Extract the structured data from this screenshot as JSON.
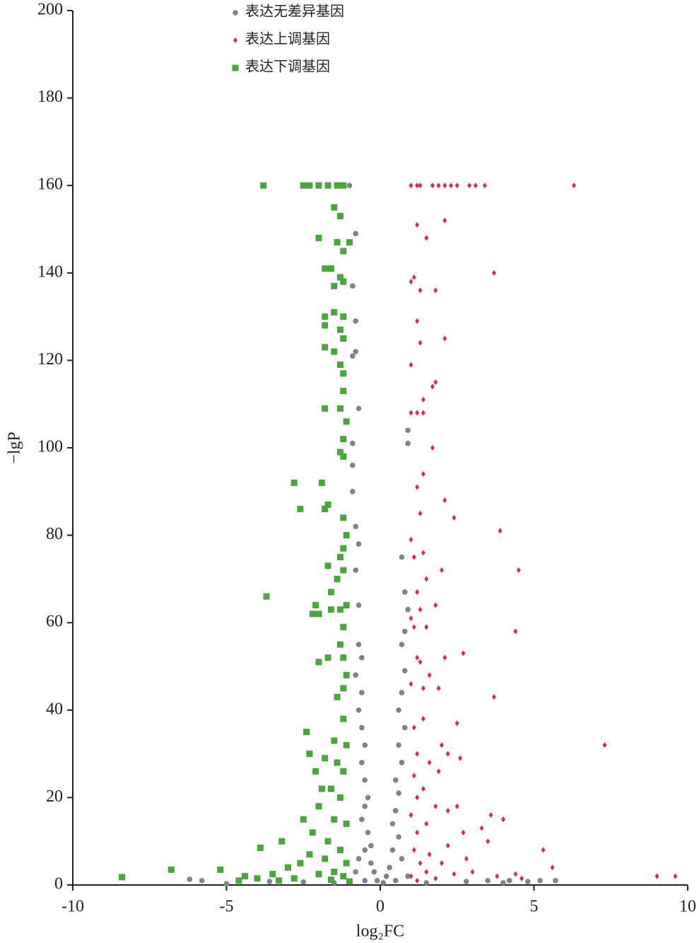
{
  "chart_data": {
    "type": "scatter",
    "x_label": "log₂FC",
    "y_label": "−lgP",
    "xlim": [
      -10,
      10
    ],
    "ylim": [
      0,
      200
    ],
    "xticks": [
      -10,
      -5,
      0,
      5,
      10
    ],
    "yticks": [
      0,
      20,
      40,
      60,
      80,
      100,
      120,
      140,
      160,
      180,
      200
    ],
    "grid": false,
    "legend": "top",
    "series": [
      {
        "name": "表达无差异基因",
        "color": "#7b8390",
        "marker": "circle",
        "x": [
          -1.0,
          -0.8,
          -0.9,
          -0.8,
          -0.9,
          -0.8,
          -0.7,
          -0.9,
          -0.9,
          -0.9,
          -0.8,
          -0.7,
          -0.8,
          -0.7,
          -0.7,
          -0.6,
          -0.8,
          -0.6,
          -0.7,
          -0.6,
          -0.5,
          -0.6,
          -0.5,
          -0.4,
          -0.5,
          -0.6,
          -0.4,
          -0.3,
          -0.5,
          -0.7,
          -0.3,
          -0.2,
          -0.8,
          -0.1,
          -0.5,
          0.9,
          0.9,
          0.7,
          0.8,
          0.9,
          0.8,
          0.7,
          0.8,
          0.7,
          0.6,
          0.8,
          0.6,
          0.7,
          0.5,
          0.6,
          0.5,
          0.4,
          0.6,
          0.4,
          0.7,
          0.3,
          0.2,
          0.9,
          0.1,
          0.5,
          -6.2,
          -5.8,
          -5.0,
          -3.6,
          -2.5,
          -1.5,
          1.5,
          2.8,
          3.5,
          4.2,
          4.8,
          5.2,
          5.7,
          4.0
        ],
        "values": [
          160,
          149,
          137,
          129,
          121,
          122,
          109,
          101,
          96,
          90,
          82,
          78,
          72,
          64,
          55,
          52,
          48,
          44,
          40,
          36,
          32,
          28,
          24,
          20,
          18,
          15,
          12,
          9,
          8,
          6,
          5,
          3,
          3,
          1,
          1,
          104,
          101,
          75,
          67,
          63,
          58,
          55,
          49,
          44,
          40,
          36,
          32,
          28,
          24,
          21,
          17,
          14,
          11,
          8,
          6,
          4,
          2,
          2,
          0.5,
          1,
          1.3,
          1,
          0.3,
          0.8,
          0.7,
          0.5,
          0.5,
          0.8,
          1,
          1,
          0.8,
          1,
          1,
          0.5
        ]
      },
      {
        "name": "表达上调基因",
        "color": "#e0284a",
        "marker": "diamond",
        "x": [
          1.0,
          1.2,
          1.3,
          1.7,
          1.9,
          2.1,
          2.3,
          2.5,
          2.9,
          3.1,
          3.4,
          6.3,
          2.1,
          1.2,
          1.5,
          3.7,
          1.1,
          1.0,
          1.8,
          1.3,
          1.2,
          1.3,
          2.1,
          1.0,
          1.8,
          1.7,
          1.4,
          1.2,
          1.0,
          1.4,
          1.7,
          1.4,
          1.2,
          2.1,
          2.4,
          1.3,
          3.9,
          1.0,
          1.4,
          1.1,
          4.5,
          2.0,
          1.5,
          1.2,
          1.8,
          1.3,
          1.0,
          1.1,
          1.5,
          4.4,
          2.7,
          1.2,
          2.1,
          1.3,
          1.6,
          1.9,
          1.4,
          1.0,
          3.7,
          1.4,
          1.1,
          2.5,
          2.0,
          7.3,
          1.2,
          2.2,
          1.6,
          2.6,
          1.1,
          1.9,
          1.4,
          1.2,
          2.5,
          1.8,
          1.0,
          2.2,
          3.6,
          1.5,
          4.0,
          3.3,
          2.7,
          1.2,
          3.5,
          2.2,
          1.1,
          1.6,
          2.8,
          1.3,
          5.3,
          5.6,
          2.0,
          1.5,
          1.0,
          3.0,
          2.4,
          3.8,
          4.4,
          9.0,
          9.6,
          1.8,
          1.2,
          4.6
        ],
        "values": [
          160,
          160,
          160,
          160,
          160,
          160,
          160,
          160,
          160,
          160,
          160,
          160,
          152,
          151,
          148,
          140,
          139,
          138,
          136,
          136,
          129,
          124,
          125,
          119,
          115,
          114,
          111,
          108,
          108,
          108,
          100,
          94,
          91,
          88,
          84,
          85,
          81,
          79,
          76,
          75,
          72,
          72,
          70,
          67,
          64,
          63,
          61,
          59,
          59,
          58,
          53,
          52,
          52,
          51,
          48,
          45,
          45,
          46,
          43,
          38,
          36,
          37,
          32,
          32,
          30,
          30,
          28,
          29,
          25,
          26,
          22,
          20,
          18,
          18,
          16,
          17,
          16,
          14,
          15,
          13,
          12,
          12,
          10,
          9,
          8,
          7,
          6,
          5,
          8,
          4,
          5,
          3,
          2,
          3,
          2.5,
          2,
          2.5,
          2,
          2,
          1.5,
          1,
          1.5
        ]
      },
      {
        "name": "表达下调基因",
        "color": "#4aa63c",
        "marker": "square",
        "x": [
          -3.8,
          -2.5,
          -2.3,
          -2.0,
          -1.7,
          -1.4,
          -1.2,
          -1.5,
          -1.3,
          -2.0,
          -1.0,
          -1.4,
          -1.2,
          -1.8,
          -1.6,
          -1.3,
          -1.2,
          -1.5,
          -1.8,
          -1.5,
          -1.2,
          -1.8,
          -1.3,
          -1.2,
          -1.8,
          -1.5,
          -1.3,
          -1.2,
          -1.2,
          -1.8,
          -1.3,
          -1.1,
          -1.2,
          -1.3,
          -1.2,
          -2.8,
          -1.9,
          -1.7,
          -1.8,
          -2.6,
          -1.2,
          -1.1,
          -1.2,
          -1.3,
          -1.7,
          -1.2,
          -1.4,
          -1.6,
          -3.7,
          -1.6,
          -2.1,
          -2.2,
          -2.0,
          -1.3,
          -1.1,
          -1.2,
          -1.3,
          -1.2,
          -2.0,
          -1.7,
          -1.1,
          -1.2,
          -1.4,
          -1.2,
          -2.4,
          -1.5,
          -1.1,
          -2.3,
          -1.8,
          -1.4,
          -1.2,
          -2.1,
          -1.6,
          -1.9,
          -1.3,
          -2.0,
          -2.5,
          -1.5,
          -1.1,
          -2.2,
          -1.7,
          -3.2,
          -3.9,
          -1.3,
          -2.3,
          -1.8,
          -1.1,
          -2.6,
          -3.0,
          -1.5,
          -4.4,
          -4.0,
          -3.5,
          -2.0,
          -1.2,
          -5.2,
          -6.8,
          -8.4,
          -2.8,
          -1.6,
          -4.6,
          -3.3,
          -1.0
        ],
        "values": [
          160,
          160,
          160,
          160,
          160,
          160,
          160,
          155,
          153,
          148,
          147,
          147,
          145,
          141,
          141,
          139,
          138,
          137,
          130,
          131,
          130,
          128,
          127,
          125,
          123,
          122,
          119,
          117,
          113,
          109,
          109,
          106,
          102,
          99,
          98,
          92,
          92,
          87,
          86,
          86,
          84,
          80,
          77,
          75,
          73,
          72,
          70,
          67,
          66,
          63,
          64,
          62,
          62,
          63,
          64,
          59,
          55,
          52,
          51,
          52,
          48,
          45,
          43,
          38,
          35,
          33,
          32,
          30,
          29,
          28,
          26,
          26,
          22,
          22,
          20,
          18,
          15,
          15,
          14,
          12,
          10,
          10,
          8.5,
          8,
          7,
          6,
          5,
          5,
          4,
          3,
          2,
          1.5,
          2.5,
          2.5,
          2,
          3.5,
          3.5,
          1.8,
          1.5,
          1.2,
          1,
          1,
          0.8
        ]
      }
    ]
  }
}
